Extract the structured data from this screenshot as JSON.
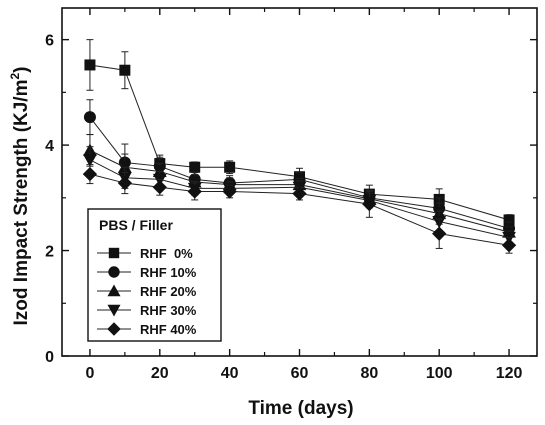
{
  "chart_data": {
    "type": "line",
    "xlabel": "Time (days)",
    "ylabel_main": "Izod Impact Strength (KJ/m",
    "ylabel_sup": "2",
    "ylabel_close": ")",
    "xlim": [
      -8,
      128
    ],
    "ylim": [
      0,
      6.6
    ],
    "xticks": [
      0,
      20,
      40,
      60,
      80,
      100,
      120
    ],
    "yticks": [
      0,
      2,
      4,
      6
    ],
    "grid": false,
    "legend": {
      "title": "PBS / Filler",
      "placement": "bottom-left"
    },
    "series": [
      {
        "name": "RHF  0%",
        "marker": "square",
        "x": [
          0,
          10,
          20,
          30,
          40,
          60,
          80,
          100,
          120
        ],
        "y": [
          5.52,
          5.42,
          3.65,
          3.58,
          3.58,
          3.4,
          3.07,
          2.97,
          2.58
        ],
        "err": [
          0.48,
          0.35,
          0.16,
          0.1,
          0.12,
          0.16,
          0.17,
          0.2,
          0.1
        ]
      },
      {
        "name": "RHF 10%",
        "marker": "circle",
        "x": [
          0,
          10,
          20,
          30,
          40,
          60,
          80,
          100,
          120
        ],
        "y": [
          4.53,
          3.67,
          3.6,
          3.35,
          3.28,
          3.35,
          3.0,
          2.8,
          2.42
        ],
        "err": [
          0.33,
          0.35,
          0.17,
          0.14,
          0.14,
          0.12,
          0.14,
          0.2,
          0.12
        ]
      },
      {
        "name": "RHF 20%",
        "marker": "triangle-up",
        "x": [
          0,
          10,
          20,
          30,
          40,
          60,
          80,
          100,
          120
        ],
        "y": [
          3.9,
          3.58,
          3.5,
          3.3,
          3.25,
          3.25,
          2.98,
          2.7,
          2.35
        ],
        "err": [
          0.3,
          0.25,
          0.15,
          0.14,
          0.13,
          0.12,
          0.14,
          0.2,
          0.1
        ]
      },
      {
        "name": "RHF 30%",
        "marker": "triangle-down",
        "x": [
          0,
          10,
          20,
          30,
          40,
          60,
          80,
          100,
          120
        ],
        "y": [
          3.72,
          3.38,
          3.35,
          3.18,
          3.18,
          3.2,
          2.95,
          2.55,
          2.25
        ],
        "err": [
          0.25,
          0.2,
          0.15,
          0.13,
          0.12,
          0.12,
          0.14,
          0.2,
          0.12
        ]
      },
      {
        "name": "RHF 40%",
        "marker": "diamond",
        "x": [
          0,
          10,
          20,
          30,
          40,
          60,
          80,
          100,
          120
        ],
        "y": [
          3.45,
          3.28,
          3.2,
          3.12,
          3.12,
          3.08,
          2.88,
          2.32,
          2.1
        ],
        "err": [
          0.18,
          0.2,
          0.15,
          0.16,
          0.12,
          0.12,
          0.25,
          0.28,
          0.15
        ]
      }
    ]
  }
}
